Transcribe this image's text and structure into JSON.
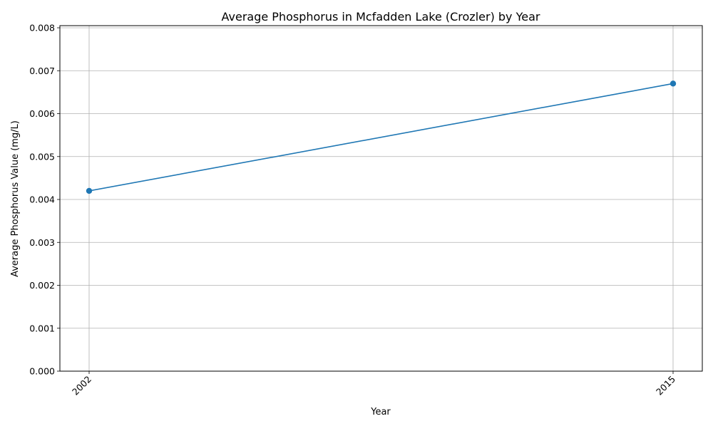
{
  "chart_data": {
    "type": "line",
    "title": "Average Phosphorus in Mcfadden Lake (Crozler) by Year",
    "xlabel": "Year",
    "ylabel": "Average Phosphorus Value (mg/L)",
    "categories": [
      "2002",
      "2015"
    ],
    "series": [
      {
        "values": [
          0.0042,
          0.0067
        ],
        "color": "#1f77b4",
        "marker": "circle"
      }
    ],
    "ylim": [
      0,
      0.00805
    ],
    "yticks": [
      "0.000",
      "0.001",
      "0.002",
      "0.003",
      "0.004",
      "0.005",
      "0.006",
      "0.007",
      "0.008"
    ],
    "grid": true,
    "legend": "none"
  }
}
